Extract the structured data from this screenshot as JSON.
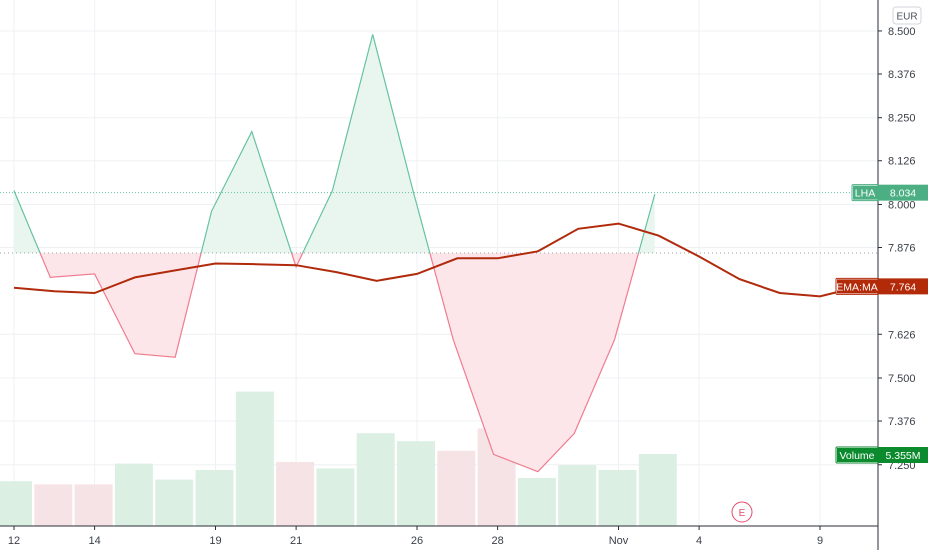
{
  "currency_button": "EUR",
  "earnings_marker": "E",
  "chart_data": {
    "type": "line",
    "title": "",
    "xlabel": "",
    "ylabel": "",
    "y_axis_position": "right",
    "grid": true,
    "ylim": [
      7.16,
      8.52
    ],
    "y_ticks": [
      "8.500",
      "8.376",
      "8.250",
      "8.126",
      "8.000",
      "7.876",
      "7.626",
      "7.500",
      "7.376",
      "7.250"
    ],
    "x_ticks": [
      {
        "label": "12",
        "x": 0
      },
      {
        "label": "14",
        "x": 2
      },
      {
        "label": "19",
        "x": 5
      },
      {
        "label": "21",
        "x": 7
      },
      {
        "label": "26",
        "x": 10
      },
      {
        "label": "28",
        "x": 12
      },
      {
        "label": "Nov",
        "x": 15
      },
      {
        "label": "4",
        "x": 17
      },
      {
        "label": "9",
        "x": 20
      }
    ],
    "baseline": 7.86,
    "reference_line": {
      "label": "LHA",
      "value": 8.034,
      "value_label": "8.034"
    },
    "price_series": {
      "name": "LHA",
      "x": [
        0,
        0.9,
        2,
        3,
        4,
        4.9,
        5.9,
        7,
        7.9,
        8.9,
        9.9,
        10.9,
        11.9,
        13,
        13.9,
        14.9,
        15.9
      ],
      "values": [
        8.04,
        7.79,
        7.8,
        7.57,
        7.56,
        7.98,
        8.21,
        7.82,
        8.04,
        8.49,
        8.04,
        7.61,
        7.28,
        7.23,
        7.34,
        7.61,
        8.03
      ]
    },
    "ema_series": {
      "name": "EMA:MA",
      "value_label": "7.764",
      "x": [
        0,
        1,
        2,
        3,
        4,
        5,
        6,
        7,
        8,
        9,
        10,
        11,
        12,
        13,
        14,
        15,
        16,
        17,
        18,
        19,
        20,
        21
      ],
      "values": [
        7.76,
        7.75,
        7.745,
        7.79,
        7.81,
        7.83,
        7.828,
        7.825,
        7.805,
        7.78,
        7.8,
        7.845,
        7.845,
        7.865,
        7.93,
        7.945,
        7.91,
        7.85,
        7.785,
        7.745,
        7.735,
        7.764
      ]
    },
    "volume_series": {
      "name": "Volume",
      "value_label": "5.355M",
      "values": [
        0.28,
        0.26,
        0.26,
        0.39,
        0.29,
        0.35,
        0.84,
        0.4,
        0.36,
        0.58,
        0.53,
        0.47,
        0.61,
        0.3,
        0.38,
        0.35,
        0.45
      ],
      "up": [
        true,
        false,
        false,
        true,
        true,
        true,
        true,
        false,
        true,
        true,
        true,
        false,
        false,
        true,
        true,
        true,
        true
      ]
    },
    "colors": {
      "up_line": "#66c2a0",
      "down_line": "#f07c8f",
      "up_fill": "#e9f6ef",
      "down_fill": "#fde6ea",
      "ema": "#b02a0b",
      "ema_label_bg": "#b32a09",
      "volume_up": "#dcefe3",
      "volume_down": "#f6e3e5",
      "volume_label_bg": "#0b8a2e",
      "lha_label_bg": "#4caf84",
      "grid": "#eef1f3",
      "axis_text": "#3a3f47",
      "earnings": "#e04c6a"
    }
  }
}
